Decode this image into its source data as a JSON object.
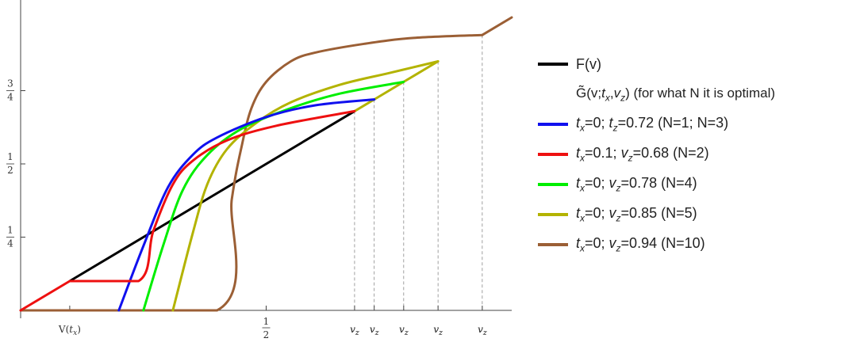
{
  "chart_data": {
    "type": "line",
    "xlim": [
      0,
      1
    ],
    "ylim": [
      0,
      1
    ],
    "x_ticks": [
      {
        "x": 0.1,
        "label": "V(t_x)"
      },
      {
        "x": 0.5,
        "label": "1/2"
      },
      {
        "x": 0.68,
        "label": "v_z"
      },
      {
        "x": 0.72,
        "label": "v_z"
      },
      {
        "x": 0.78,
        "label": "v_z"
      },
      {
        "x": 0.85,
        "label": "v_z"
      },
      {
        "x": 0.94,
        "label": "v_z"
      }
    ],
    "y_ticks": [
      {
        "y": 0.25,
        "label": "1/4"
      },
      {
        "y": 0.5,
        "label": "1/2"
      },
      {
        "y": 0.75,
        "label": "3/4"
      }
    ],
    "series": [
      {
        "name": "F(v)",
        "color": "#000000",
        "x": [
          0.1,
          0.68
        ],
        "y": [
          0.1,
          0.68
        ]
      },
      {
        "name": "t_x=0; t_z=0.72 (N=1; N=3)",
        "color": "#1010ee",
        "x": [
          0.2,
          0.25,
          0.3,
          0.35,
          0.4,
          0.5,
          0.6,
          0.72
        ],
        "y": [
          0.0,
          0.22,
          0.42,
          0.53,
          0.59,
          0.66,
          0.7,
          0.72
        ]
      },
      {
        "name": "t_x=0.1; v_z=0.68 (N=2)",
        "color": "#ee1010",
        "x": [
          0.0,
          0.1,
          0.24,
          0.27,
          0.31,
          0.35,
          0.42,
          0.52,
          0.68
        ],
        "y": [
          0.0,
          0.1,
          0.1,
          0.27,
          0.43,
          0.51,
          0.58,
          0.63,
          0.68
        ]
      },
      {
        "name": "t_x=0; v_z=0.78 (N=4)",
        "color": "#00ee00",
        "x": [
          0.25,
          0.29,
          0.33,
          0.38,
          0.45,
          0.55,
          0.65,
          0.78
        ],
        "y": [
          0.0,
          0.22,
          0.41,
          0.53,
          0.62,
          0.69,
          0.74,
          0.78
        ]
      },
      {
        "name": "t_x=0; v_z=0.85 (N=5)",
        "color": "#b3b300",
        "x": [
          0.31,
          0.35,
          0.38,
          0.42,
          0.48,
          0.55,
          0.65,
          0.75,
          0.85
        ],
        "y": [
          0.0,
          0.26,
          0.43,
          0.55,
          0.64,
          0.71,
          0.77,
          0.81,
          0.85
        ]
      },
      {
        "name": "t_x=0; v_z=0.94 (N=10)",
        "color": "#9b5f35",
        "x": [
          0.0,
          0.4,
          0.43,
          0.45,
          0.47,
          0.5,
          0.55,
          0.6,
          0.7,
          0.8,
          0.94
        ],
        "y": [
          0.0,
          0.0,
          0.38,
          0.56,
          0.69,
          0.78,
          0.85,
          0.88,
          0.91,
          0.93,
          0.94
        ]
      },
      {
        "name": "",
        "color": "#b3b300",
        "x": [
          0.68,
          0.72,
          0.78,
          0.85
        ],
        "y": [
          0.68,
          0.72,
          0.78,
          0.85
        ]
      },
      {
        "name": "",
        "color": "#9b5f35",
        "x": [
          0.94,
          1.0
        ],
        "y": [
          0.94,
          1.0
        ]
      }
    ],
    "dashed_markers": [
      0.68,
      0.72,
      0.78,
      0.85,
      0.94
    ],
    "legend_position": "right",
    "legend": [
      {
        "label": "F(v)",
        "color": "#000000"
      },
      {
        "label": "G̃(v;t_x,v_z) (for what N it is optimal)",
        "color": ""
      },
      {
        "label": "t_x=0; t_z=0.72 (N=1; N=3)",
        "color": "#1010ee"
      },
      {
        "label": "t_x=0.1; v_z=0.68 (N=2)",
        "color": "#ee1010"
      },
      {
        "label": "t_x=0; v_z=0.78 (N=4)",
        "color": "#00ee00"
      },
      {
        "label": "t_x=0; v_z=0.85 (N=5)",
        "color": "#b3b300"
      },
      {
        "label": "t_x=0; v_z=0.94 (N=10)",
        "color": "#9b5f35"
      }
    ]
  }
}
